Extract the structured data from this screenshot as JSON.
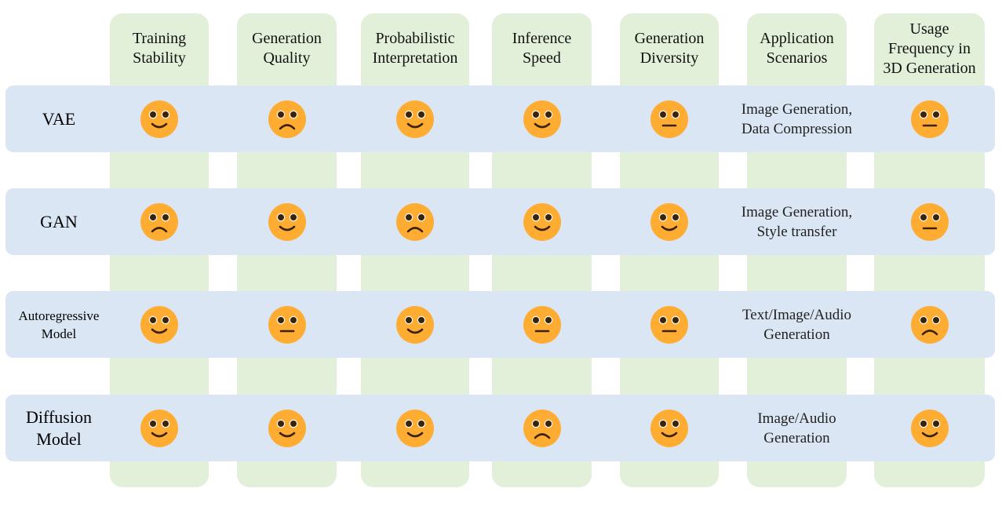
{
  "columns": [
    {
      "key": "training_stability",
      "label": "Training\nStability"
    },
    {
      "key": "generation_quality",
      "label": "Generation\nQuality"
    },
    {
      "key": "probabilistic_interpretation",
      "label": "Probabilistic\nInterpretation"
    },
    {
      "key": "inference_speed",
      "label": "Inference\nSpeed"
    },
    {
      "key": "generation_diversity",
      "label": "Generation\nDiversity"
    },
    {
      "key": "application_scenarios",
      "label": "Application\nScenarios"
    },
    {
      "key": "usage_frequency_3d",
      "label": "Usage\nFrequency in\n3D Generation"
    }
  ],
  "rows": [
    {
      "label": "VAE",
      "cells": [
        "smile",
        "frown",
        "smile",
        "smile",
        "neutral",
        "Image Generation,\nData Compression",
        "neutral"
      ]
    },
    {
      "label": "GAN",
      "cells": [
        "frown",
        "smile",
        "frown",
        "smile",
        "smile",
        "Image Generation,\nStyle transfer",
        "neutral"
      ]
    },
    {
      "label": "Autoregressive\nModel",
      "cells": [
        "smile",
        "neutral",
        "smile",
        "neutral",
        "neutral",
        "Text/Image/Audio\nGeneration",
        "frown"
      ]
    },
    {
      "label": "Diffusion\nModel",
      "cells": [
        "smile",
        "smile",
        "smile",
        "frown",
        "smile",
        "Image/Audio\nGeneration",
        "smile"
      ]
    }
  ],
  "colors": {
    "column_band": "#e2f0d9",
    "row_band": "#dae6f3",
    "emoji_face": "#ffac33",
    "emoji_features": "#3b2208"
  },
  "icons": {
    "smile": "smiling-face-icon",
    "neutral": "neutral-face-icon",
    "frown": "frowning-face-icon"
  }
}
